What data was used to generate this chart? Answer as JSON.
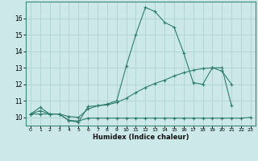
{
  "xlabel": "Humidex (Indice chaleur)",
  "line_color": "#2e7d6e",
  "bg_color": "#cce8e8",
  "grid_color": "#aacece",
  "xlim": [
    -0.5,
    23.5
  ],
  "ylim": [
    9.5,
    17.0
  ],
  "xticks": [
    0,
    1,
    2,
    3,
    4,
    5,
    6,
    7,
    8,
    9,
    10,
    11,
    12,
    13,
    14,
    15,
    16,
    17,
    18,
    19,
    20,
    21,
    22,
    23
  ],
  "yticks": [
    10,
    11,
    12,
    13,
    14,
    15,
    16
  ],
  "line1_x": [
    0,
    1,
    2,
    3,
    4,
    5,
    6,
    7,
    8,
    9,
    10,
    11,
    12,
    13,
    14,
    15,
    16,
    17,
    18,
    19,
    20,
    21
  ],
  "line1_y": [
    10.2,
    10.6,
    10.2,
    10.2,
    9.8,
    9.7,
    10.65,
    10.7,
    10.8,
    11.0,
    13.1,
    15.0,
    16.65,
    16.4,
    15.75,
    15.45,
    13.9,
    12.1,
    12.0,
    13.0,
    13.0,
    10.7
  ],
  "line2_x": [
    0,
    1,
    2,
    3,
    4,
    5,
    6,
    7,
    8,
    9,
    10,
    11,
    12,
    13,
    14,
    15,
    16,
    17,
    18,
    19,
    20,
    21
  ],
  "line2_y": [
    10.2,
    10.4,
    10.2,
    10.2,
    10.05,
    10.0,
    10.5,
    10.7,
    10.75,
    10.9,
    11.15,
    11.5,
    11.8,
    12.05,
    12.25,
    12.5,
    12.7,
    12.85,
    12.95,
    13.0,
    12.8,
    12.0
  ],
  "line3_x": [
    0,
    1,
    2,
    3,
    4,
    5,
    6,
    7,
    8,
    9,
    10,
    11,
    12,
    13,
    14,
    15,
    16,
    17,
    18,
    19,
    20,
    21,
    22,
    23
  ],
  "line3_y": [
    10.2,
    10.2,
    10.2,
    10.2,
    9.82,
    9.78,
    9.95,
    9.95,
    9.95,
    9.95,
    9.95,
    9.95,
    9.95,
    9.95,
    9.95,
    9.95,
    9.95,
    9.95,
    9.95,
    9.95,
    9.95,
    9.95,
    9.95,
    10.0
  ]
}
